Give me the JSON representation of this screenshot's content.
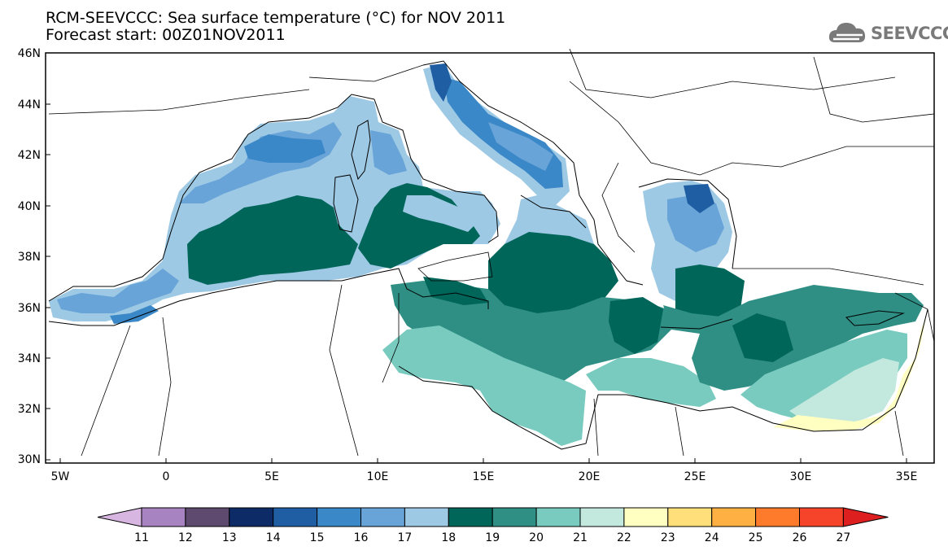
{
  "title": {
    "line1": "RCM-SEEVCCC: Sea surface temperature (°C) for NOV 2011",
    "line2": "Forecast start: 00Z01NOV2011"
  },
  "logo": {
    "text": "SEEVCCC",
    "icon": "cloud-icon"
  },
  "map": {
    "lat_labels": [
      "46N",
      "44N",
      "42N",
      "40N",
      "38N",
      "36N",
      "34N",
      "32N",
      "30N"
    ],
    "lon_labels": [
      "5W",
      "0",
      "5E",
      "10E",
      "15E",
      "20E",
      "25E",
      "30E",
      "35E"
    ]
  },
  "colorbar": {
    "ticks": [
      "11",
      "12",
      "13",
      "14",
      "15",
      "16",
      "17",
      "18",
      "19",
      "20",
      "21",
      "22",
      "23",
      "24",
      "25",
      "26",
      "27"
    ],
    "colors": [
      "#a784c1",
      "#5e4a6e",
      "#0d2b66",
      "#1f5ea3",
      "#3b88c8",
      "#68a4d8",
      "#9ec9e4",
      "#00665a",
      "#2f8f84",
      "#79cbbf",
      "#c3e8de",
      "#ffffc2",
      "#ffdf7a",
      "#ffb042",
      "#ff7b2c",
      "#f5442a"
    ],
    "under_color": "#d8b6e2",
    "over_color": "#de1f1f"
  },
  "colors": {
    "deep_teal": "#00665a",
    "teal": "#2f8f84",
    "mint": "#79cbbf",
    "pale_mint": "#c3e8de",
    "light_blue": "#9ec9e4",
    "mid_blue": "#68a4d8",
    "blue": "#3b88c8",
    "dark_blue": "#1f5ea3",
    "pale_yellow": "#ffffc2"
  }
}
